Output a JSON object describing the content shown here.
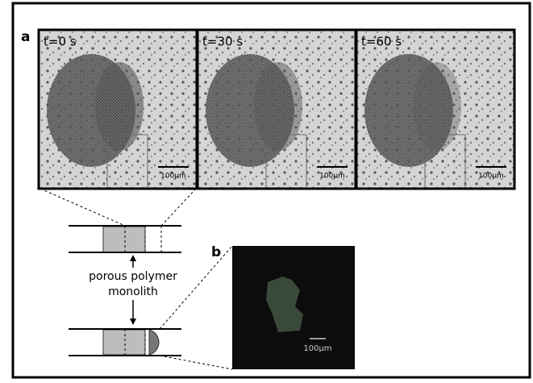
{
  "panel_a": {
    "label": "a",
    "frames": [
      {
        "time": "t=0 s",
        "scale": "100μm"
      },
      {
        "time": "t=30 s",
        "scale": "100μm"
      },
      {
        "time": "t=60 s",
        "scale": "100μm"
      }
    ]
  },
  "diagram": {
    "label_line1": "porous polymer",
    "label_line2": "monolith"
  },
  "panel_b": {
    "label": "b",
    "scale": "100μm"
  }
}
